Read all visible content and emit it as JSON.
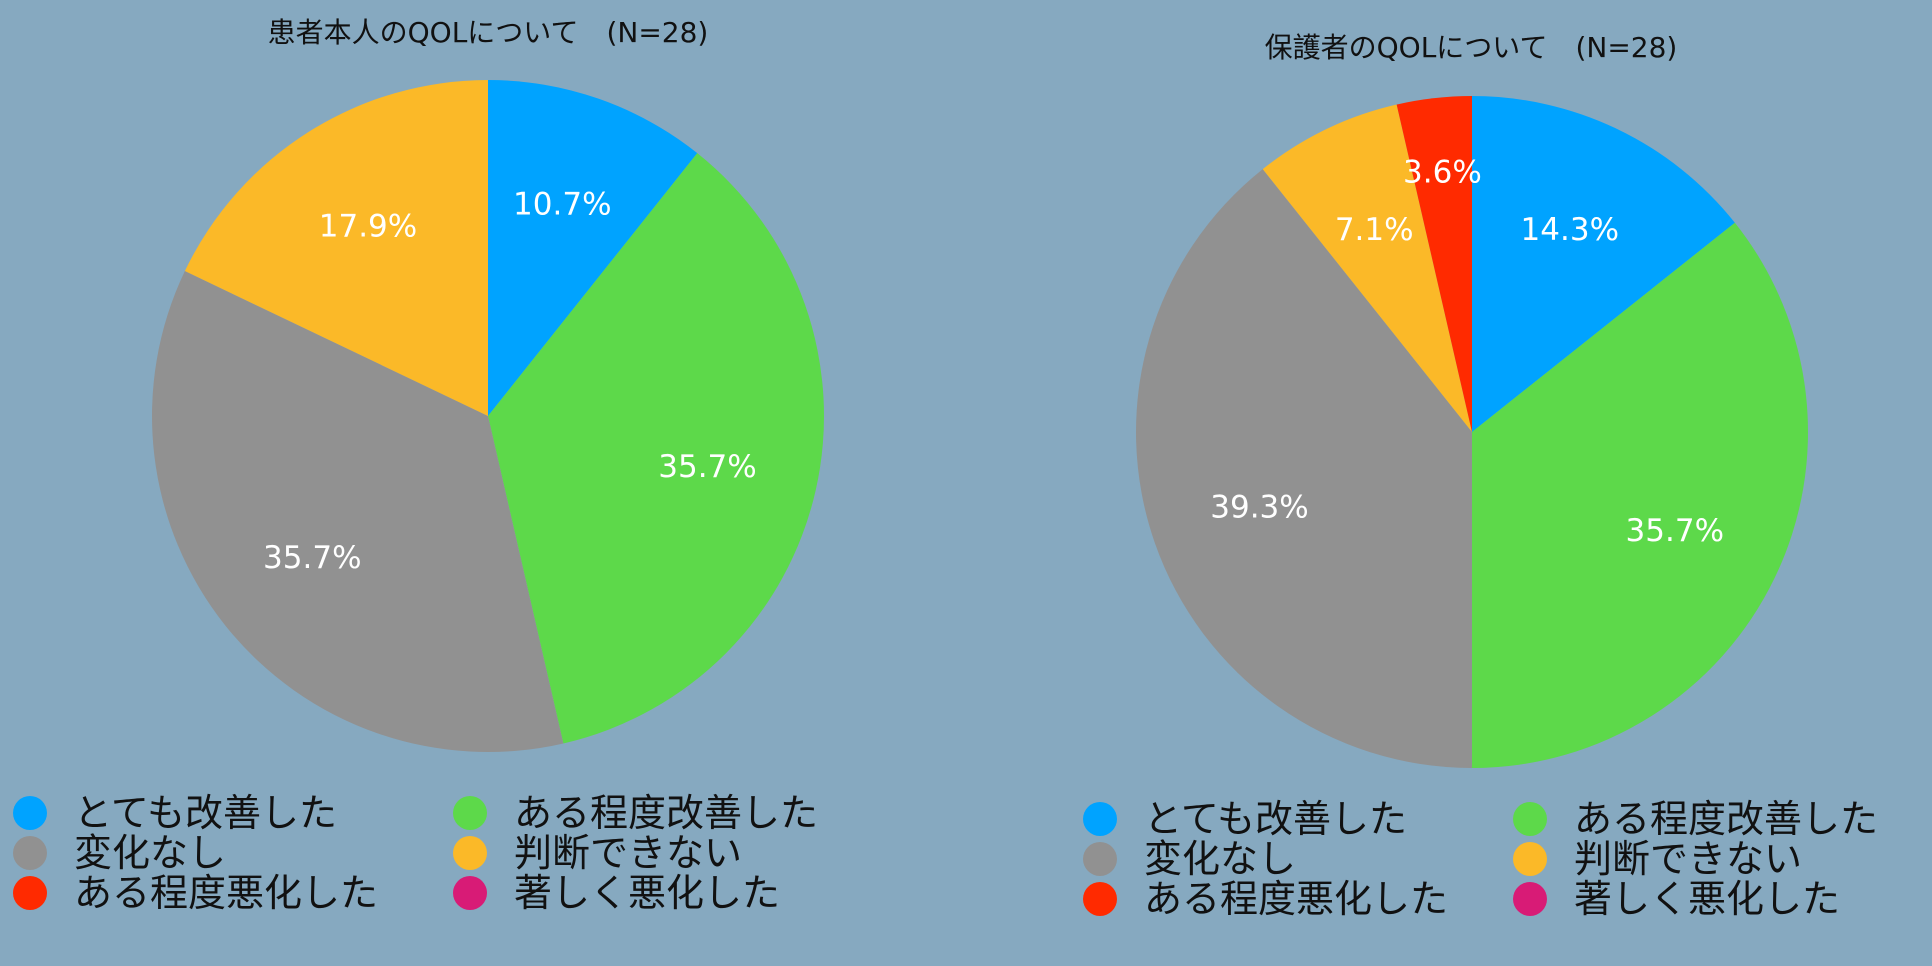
{
  "chart_data": [
    {
      "type": "pie",
      "title": "患者本人のQOLについて　(N=28)",
      "categories": [
        "とても改善した",
        "ある程度改善した",
        "変化なし",
        "判断できない",
        "ある程度悪化した",
        "著しく悪化した"
      ],
      "values": [
        10.7,
        35.7,
        35.7,
        17.9,
        0,
        0
      ],
      "data_labels": [
        "10.7%",
        "35.7%",
        "35.7%",
        "17.9%",
        "",
        ""
      ],
      "colors": [
        "#00a3ff",
        "#5dd94a",
        "#919191",
        "#fbb928",
        "#ff2a00",
        "#d81b76"
      ],
      "legend_placement": "bottom"
    },
    {
      "type": "pie",
      "title": "保護者のQOLについて　(N=28)",
      "categories": [
        "とても改善した",
        "ある程度改善した",
        "変化なし",
        "判断できない",
        "ある程度悪化した",
        "著しく悪化した"
      ],
      "values": [
        14.3,
        35.7,
        39.3,
        7.1,
        3.6,
        0
      ],
      "data_labels": [
        "14.3%",
        "35.7%",
        "39.3%",
        "7.1%",
        "3.6%",
        ""
      ],
      "colors": [
        "#00a3ff",
        "#5dd94a",
        "#919191",
        "#fbb928",
        "#ff2a00",
        "#d81b76"
      ],
      "legend_placement": "bottom"
    }
  ]
}
